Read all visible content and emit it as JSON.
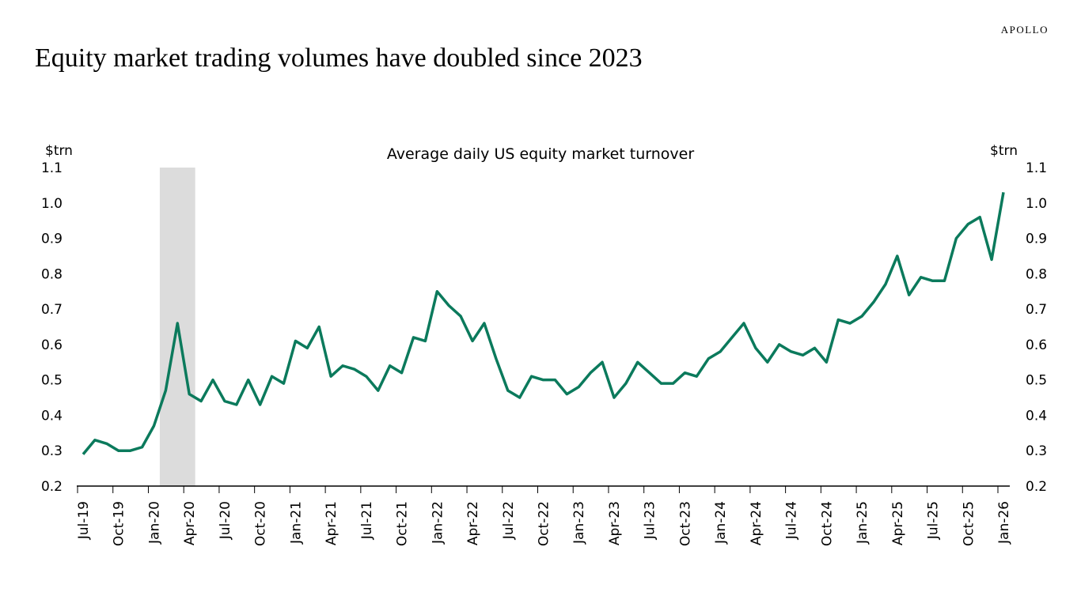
{
  "brand": "APOLLO",
  "chart_data": {
    "type": "line",
    "title": "Equity market trading volumes have doubled since 2023",
    "subtitle": "Average daily US equity market turnover",
    "y_label": "$trn",
    "y2_label": "$trn",
    "categories": [
      "Jul-19",
      null,
      null,
      "Oct-19",
      null,
      null,
      "Jan-20",
      null,
      null,
      "Apr-20",
      null,
      null,
      "Jul-20",
      null,
      null,
      "Oct-20",
      null,
      null,
      "Jan-21",
      null,
      null,
      "Apr-21",
      null,
      null,
      "Jul-21",
      null,
      null,
      "Oct-21",
      null,
      null,
      "Jan-22",
      null,
      null,
      "Apr-22",
      null,
      null,
      "Jul-22",
      null,
      null,
      "Oct-22",
      null,
      null,
      "Jan-23",
      null,
      null,
      "Apr-23",
      null,
      null,
      "Jul-23",
      null,
      null,
      "Oct-23",
      null,
      null,
      "Jan-24",
      null,
      null,
      "Apr-24",
      null,
      null,
      "Jul-24",
      null,
      null,
      "Oct-24",
      null,
      null,
      "Jan-25",
      null,
      null,
      "Apr-25",
      null,
      null,
      "Jul-25",
      null,
      null,
      "Oct-25",
      null,
      null,
      "Jan-26"
    ],
    "series": [
      {
        "name": "Average daily US equity market turnover",
        "color": "#0b7a5c",
        "values": [
          0.29,
          0.33,
          0.32,
          0.3,
          0.3,
          0.31,
          0.37,
          0.47,
          0.66,
          0.46,
          0.44,
          0.5,
          0.44,
          0.43,
          0.5,
          0.43,
          0.51,
          0.49,
          0.61,
          0.59,
          0.65,
          0.51,
          0.54,
          0.53,
          0.51,
          0.47,
          0.54,
          0.52,
          0.62,
          0.61,
          0.75,
          0.71,
          0.68,
          0.61,
          0.66,
          0.56,
          0.47,
          0.45,
          0.51,
          0.5,
          0.5,
          0.46,
          0.48,
          0.52,
          0.55,
          0.45,
          0.49,
          0.55,
          0.52,
          0.49,
          0.49,
          0.52,
          0.51,
          0.56,
          0.58,
          0.62,
          0.66,
          0.59,
          0.55,
          0.6,
          0.58,
          0.57,
          0.59,
          0.55,
          0.67,
          0.66,
          0.68,
          0.72,
          0.77,
          0.85,
          0.74,
          0.79,
          0.78,
          0.78,
          0.9,
          0.94,
          0.96,
          0.84,
          1.03
        ]
      }
    ],
    "shaded_span": [
      7,
      9
    ],
    "shade_color": "#dcdcdc",
    "ylim": [
      0.2,
      1.1
    ],
    "yticks": [
      0.2,
      0.3,
      0.4,
      0.5,
      0.6,
      0.7,
      0.8,
      0.9,
      {
        "value": 1,
        "label": "1.0"
      },
      1.1
    ],
    "y2lim": [
      0.2,
      1.1
    ],
    "y2ticks": [
      0.2,
      0.3,
      0.4,
      0.5,
      0.6,
      0.7,
      0.8,
      0.9,
      {
        "value": 1,
        "label": "1.0"
      },
      1.1
    ]
  }
}
